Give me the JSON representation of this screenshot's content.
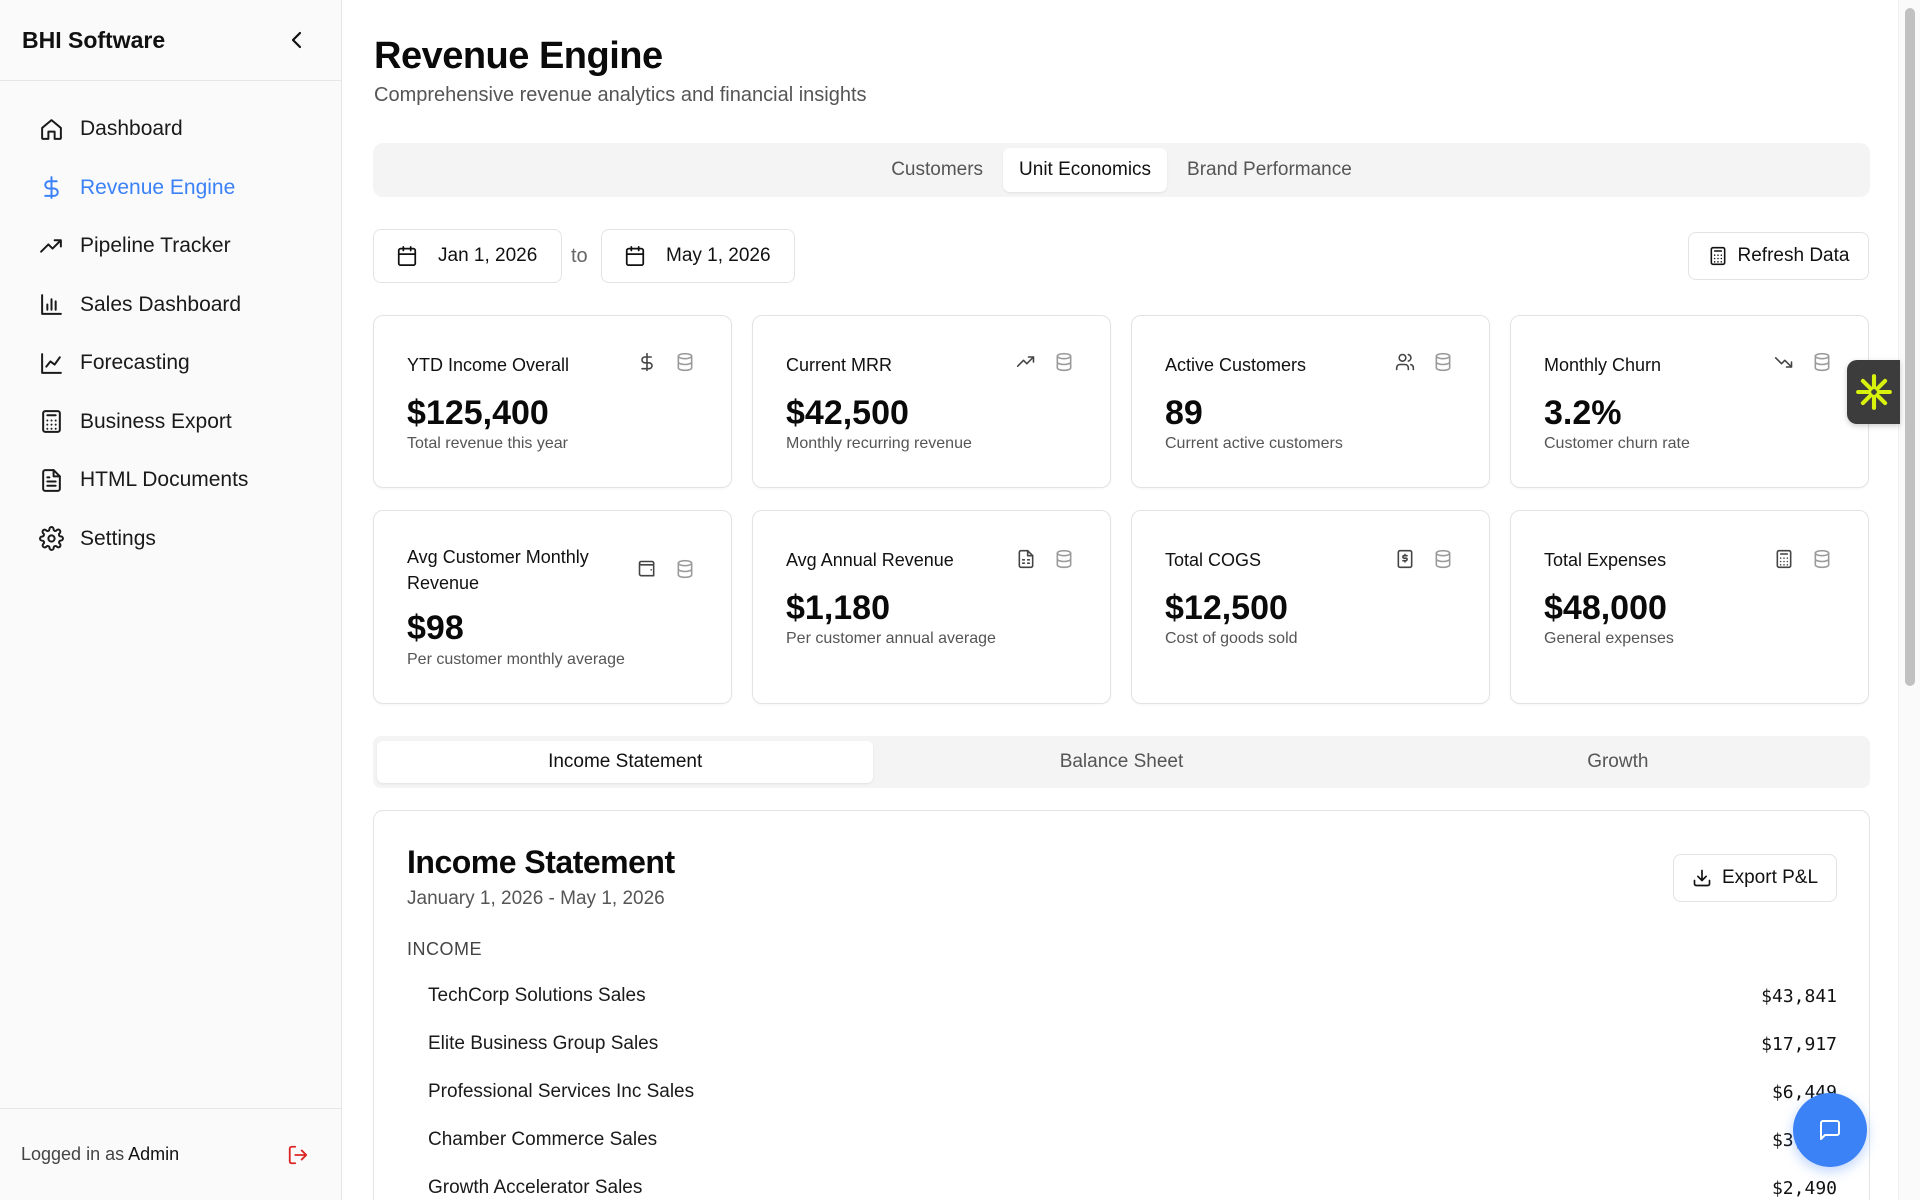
{
  "app": {
    "name": "BHI Software"
  },
  "sidebar": {
    "items": [
      {
        "label": "Dashboard",
        "icon": "home-icon"
      },
      {
        "label": "Revenue Engine",
        "icon": "dollar-icon",
        "active": true
      },
      {
        "label": "Pipeline Tracker",
        "icon": "trending-up-icon"
      },
      {
        "label": "Sales Dashboard",
        "icon": "bar-chart-icon"
      },
      {
        "label": "Forecasting",
        "icon": "line-chart-icon"
      },
      {
        "label": "Business Export",
        "icon": "calculator-icon"
      },
      {
        "label": "HTML Documents",
        "icon": "file-text-icon"
      },
      {
        "label": "Settings",
        "icon": "gear-icon"
      }
    ],
    "footer": {
      "prefix": "Logged in as",
      "user": "Admin"
    }
  },
  "header": {
    "title": "Revenue Engine",
    "subtitle": "Comprehensive revenue analytics and financial insights"
  },
  "tabs": [
    {
      "label": "Customers"
    },
    {
      "label": "Unit Economics",
      "active": true
    },
    {
      "label": "Brand Performance"
    }
  ],
  "date_range": {
    "start": "Jan 1, 2026",
    "separator": "to",
    "end": "May 1, 2026"
  },
  "refresh_label": "Refresh Data",
  "cards": [
    {
      "title": "YTD Income Overall",
      "value": "$125,400",
      "desc": "Total revenue this year",
      "icon": "dollar-icon"
    },
    {
      "title": "Current MRR",
      "value": "$42,500",
      "desc": "Monthly recurring revenue",
      "icon": "trending-up-icon"
    },
    {
      "title": "Active Customers",
      "value": "89",
      "desc": "Current active customers",
      "icon": "users-icon"
    },
    {
      "title": "Monthly Churn",
      "value": "3.2%",
      "desc": "Customer churn rate",
      "icon": "trending-down-icon"
    },
    {
      "title": "Avg Customer Monthly Revenue",
      "value": "$98",
      "desc": "Per customer monthly average",
      "icon": "wallet-icon"
    },
    {
      "title": "Avg Annual Revenue",
      "value": "$1,180",
      "desc": "Per customer annual average",
      "icon": "file-spreadsheet-icon"
    },
    {
      "title": "Total COGS",
      "value": "$12,500",
      "desc": "Cost of goods sold",
      "icon": "receipt-icon"
    },
    {
      "title": "Total Expenses",
      "value": "$48,000",
      "desc": "General expenses",
      "icon": "calculator-icon"
    }
  ],
  "subtabs": [
    {
      "label": "Income Statement",
      "active": true
    },
    {
      "label": "Balance Sheet"
    },
    {
      "label": "Growth"
    }
  ],
  "statement": {
    "title": "Income Statement",
    "period": "January 1, 2026 - May 1, 2026",
    "export_label": "Export P&L",
    "section": "INCOME",
    "rows": [
      {
        "name": "TechCorp Solutions Sales",
        "amount": "$43,841"
      },
      {
        "name": "Elite Business Group Sales",
        "amount": "$17,917"
      },
      {
        "name": "Professional Services Inc Sales",
        "amount": "$6,449"
      },
      {
        "name": "Chamber Commerce Sales",
        "amount": "$3,..."
      },
      {
        "name": "Growth Accelerator Sales",
        "amount": "$2,490"
      }
    ]
  },
  "colors": {
    "accent": "#3b82f6",
    "logout": "#dc2626",
    "widget_star": "#d9f20c"
  }
}
